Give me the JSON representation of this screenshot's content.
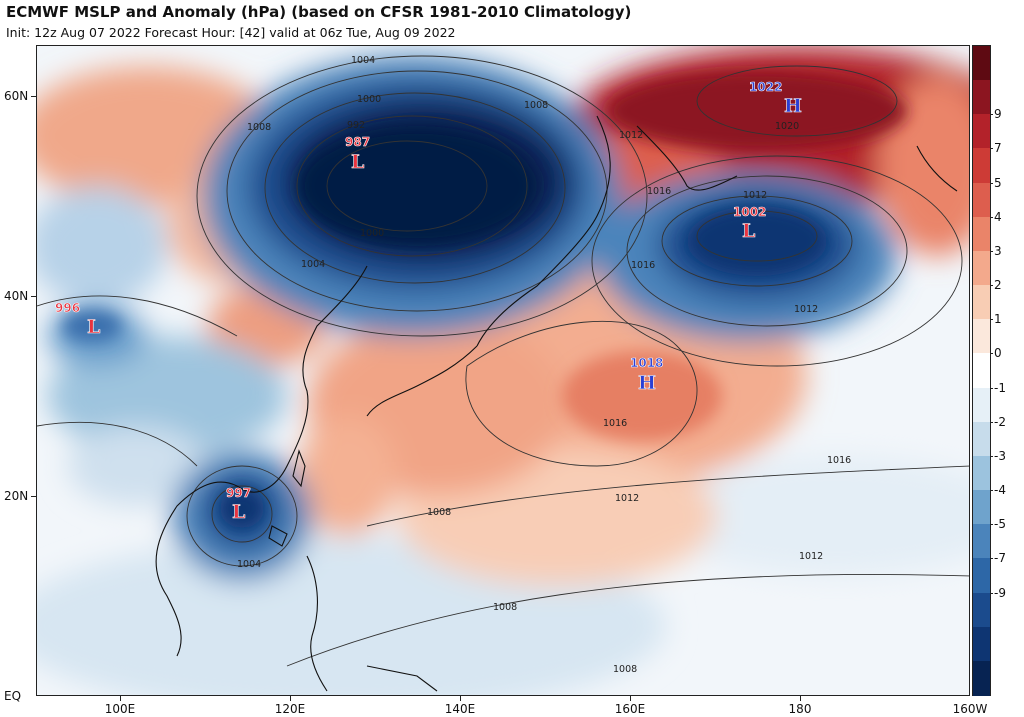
{
  "header": {
    "title": "ECMWF MSLP and Anomaly (hPa) (based on CFSR 1981-2010 Climatology)",
    "subtitle": "Init: 12z Aug 07 2022   Forecast Hour: [42]   valid at 06z Tue, Aug 09 2022"
  },
  "axes": {
    "lat_labels": [
      "60N",
      "40N",
      "20N",
      "EQ"
    ],
    "lon_labels": [
      "100E",
      "120E",
      "140E",
      "160E",
      "180",
      "160W"
    ]
  },
  "colorbar": {
    "labels": [
      "9",
      "7",
      "5",
      "4",
      "3",
      "2",
      "1",
      "0",
      "-1",
      "-2",
      "-3",
      "-4",
      "-5",
      "-7",
      "-9"
    ],
    "colors": [
      "#5e0a12",
      "#8c1520",
      "#b3222a",
      "#cd3b36",
      "#dd5e4e",
      "#ea8469",
      "#f3a98c",
      "#f8cdb4",
      "#fbe8dc",
      "#ffffff",
      "#e6f0f7",
      "#c7dceb",
      "#9cc3de",
      "#6fa3cc",
      "#4b84bb",
      "#2d67a7",
      "#1b4b8d",
      "#0e3572",
      "#072352"
    ]
  },
  "pressure_centers": [
    {
      "type": "L",
      "value": "987",
      "color": "#e8333f"
    },
    {
      "type": "H",
      "value": "1022",
      "color": "#2a3fd4"
    },
    {
      "type": "L",
      "value": "1002",
      "color": "#e8333f"
    },
    {
      "type": "L",
      "value": "996",
      "color": "#e8333f"
    },
    {
      "type": "H",
      "value": "1018",
      "color": "#2a3fd4"
    },
    {
      "type": "L",
      "value": "997",
      "color": "#e8333f"
    }
  ],
  "isobar_labels": [
    "1004",
    "1000",
    "992",
    "1008",
    "1012",
    "1016",
    "1020",
    "1012",
    "1008",
    "1004",
    "1000",
    "1016",
    "1012",
    "1016",
    "1012",
    "1008",
    "1004",
    "1016",
    "1012",
    "1008",
    "1008"
  ]
}
